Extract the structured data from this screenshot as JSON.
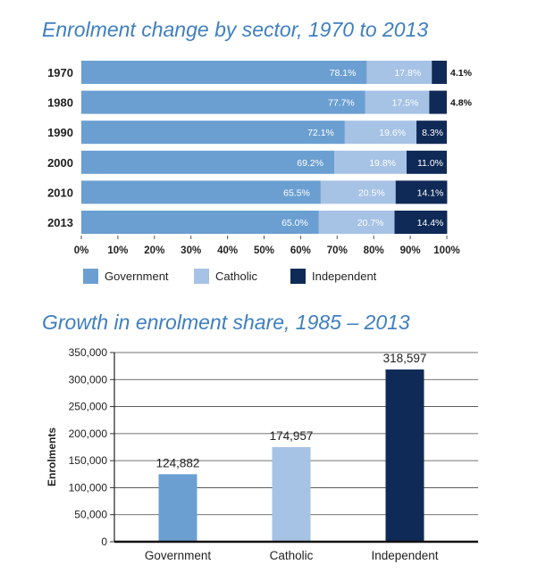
{
  "chart_data": [
    {
      "type": "bar",
      "orientation": "horizontal",
      "stacked": true,
      "title": "Enrolment change by sector, 1970 to 2013",
      "categories": [
        "1970",
        "1980",
        "1990",
        "2000",
        "2010",
        "2013"
      ],
      "series": [
        {
          "name": "Government",
          "values": [
            78.1,
            77.7,
            72.1,
            69.2,
            65.5,
            65.0
          ],
          "labels": [
            "78.1%",
            "77.7%",
            "72.1%",
            "69.2%",
            "65.5%",
            "65.0%"
          ]
        },
        {
          "name": "Catholic",
          "values": [
            17.8,
            17.5,
            19.6,
            19.8,
            20.5,
            20.7
          ],
          "labels": [
            "17.8%",
            "17.5%",
            "19.6%",
            "19.8%",
            "20.5%",
            "20.7%"
          ]
        },
        {
          "name": "Independent",
          "values": [
            4.1,
            4.8,
            8.3,
            11.0,
            14.1,
            14.4
          ],
          "labels": [
            "4.1%",
            "4.8%",
            "8.3%",
            "11.0%",
            "14.1%",
            "14.4%"
          ]
        }
      ],
      "xlim": [
        0,
        100
      ],
      "x_ticks": [
        "0%",
        "10%",
        "20%",
        "30%",
        "40%",
        "50%",
        "60%",
        "70%",
        "80%",
        "90%",
        "100%"
      ],
      "legend_position": "bottom",
      "colors": {
        "Government": "#6b9fd2",
        "Catholic": "#a6c2e5",
        "Independent": "#0f2a57"
      }
    },
    {
      "type": "bar",
      "title": "Growth in enrolment share, 1985 – 2013",
      "categories": [
        "Government",
        "Catholic",
        "Independent"
      ],
      "values": [
        124882,
        174957,
        318597
      ],
      "value_labels": [
        "124,882",
        "174,957",
        "318,597"
      ],
      "ylabel": "Enrolments",
      "ylim": [
        0,
        350000
      ],
      "y_ticks": [
        "0",
        "50,000",
        "100,000",
        "150,000",
        "200,000",
        "250,000",
        "300,000",
        "350,000"
      ],
      "grid": true,
      "colors": [
        "#6b9fd2",
        "#a6c2e5",
        "#0f2a57"
      ]
    }
  ]
}
